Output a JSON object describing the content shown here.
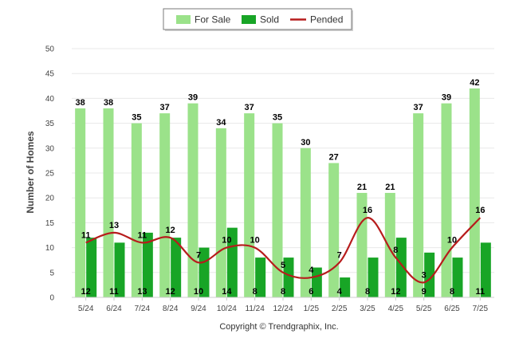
{
  "chart_data": {
    "type": "bar",
    "ylabel": "Number of Homes",
    "ylim": [
      0,
      50
    ],
    "yticks": [
      0,
      5,
      10,
      15,
      20,
      25,
      30,
      35,
      40,
      45,
      50
    ],
    "grid": true,
    "legend_position": "top-center",
    "categories": [
      "5/24",
      "6/24",
      "7/24",
      "8/24",
      "9/24",
      "10/24",
      "11/24",
      "12/24",
      "1/25",
      "2/25",
      "3/25",
      "4/25",
      "5/25",
      "6/25",
      "7/25"
    ],
    "series": [
      {
        "name": "For Sale",
        "kind": "bar",
        "color": "#9be28a",
        "values": [
          38,
          38,
          35,
          37,
          39,
          34,
          37,
          35,
          30,
          27,
          21,
          21,
          37,
          39,
          42
        ]
      },
      {
        "name": "Sold",
        "kind": "bar",
        "color": "#18a526",
        "values": [
          12,
          11,
          13,
          12,
          10,
          14,
          8,
          8,
          6,
          4,
          8,
          12,
          9,
          8,
          11
        ]
      },
      {
        "name": "Pended",
        "kind": "line",
        "color": "#b71c1c",
        "values": [
          11,
          13,
          11,
          12,
          7,
          10,
          10,
          5,
          4,
          7,
          16,
          8,
          3,
          10,
          16
        ]
      }
    ]
  },
  "footer": {
    "copyright": "Copyright © Trendgraphix, Inc."
  }
}
